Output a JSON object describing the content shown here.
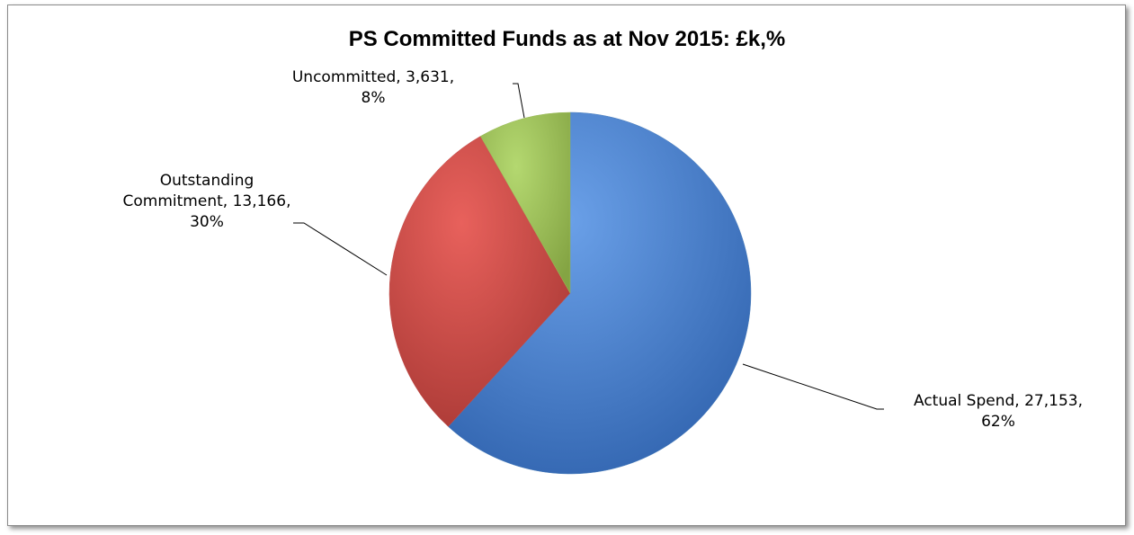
{
  "chart_data": {
    "type": "pie",
    "title": "PS Committed Funds as at Nov 2015: £k,%",
    "categories": [
      "Actual Spend",
      "Outstanding Commitment",
      "Uncommitted"
    ],
    "values": [
      27153,
      13166,
      3631
    ],
    "value_labels": [
      "27,153",
      "13,166",
      "3,631"
    ],
    "percent_labels": [
      "62%",
      "30%",
      "8%"
    ],
    "label_separator": ", ",
    "colors": [
      "#4a7ebb",
      "#c0504d",
      "#9bbb59"
    ]
  }
}
